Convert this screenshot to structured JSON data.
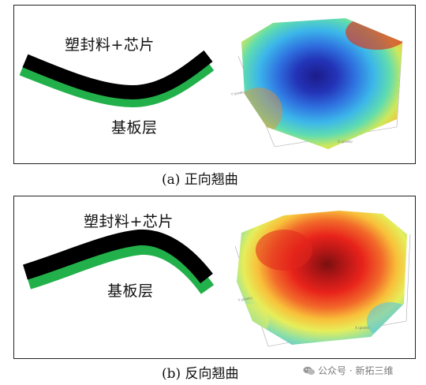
{
  "panel_a": {
    "top_layer_label": "塑封料+芯片",
    "bottom_layer_label": "基板层",
    "caption": "(a) 正向翘曲"
  },
  "panel_b": {
    "top_layer_label": "塑封料+芯片",
    "bottom_layer_label": "基板层",
    "caption": "(b) 反向翘曲"
  },
  "colors": {
    "mold_layer": "#000000",
    "substrate_layer": "#22b04a"
  },
  "watermark": {
    "icon": "wechat-icon",
    "text": "公众号 · 新拓三维"
  }
}
